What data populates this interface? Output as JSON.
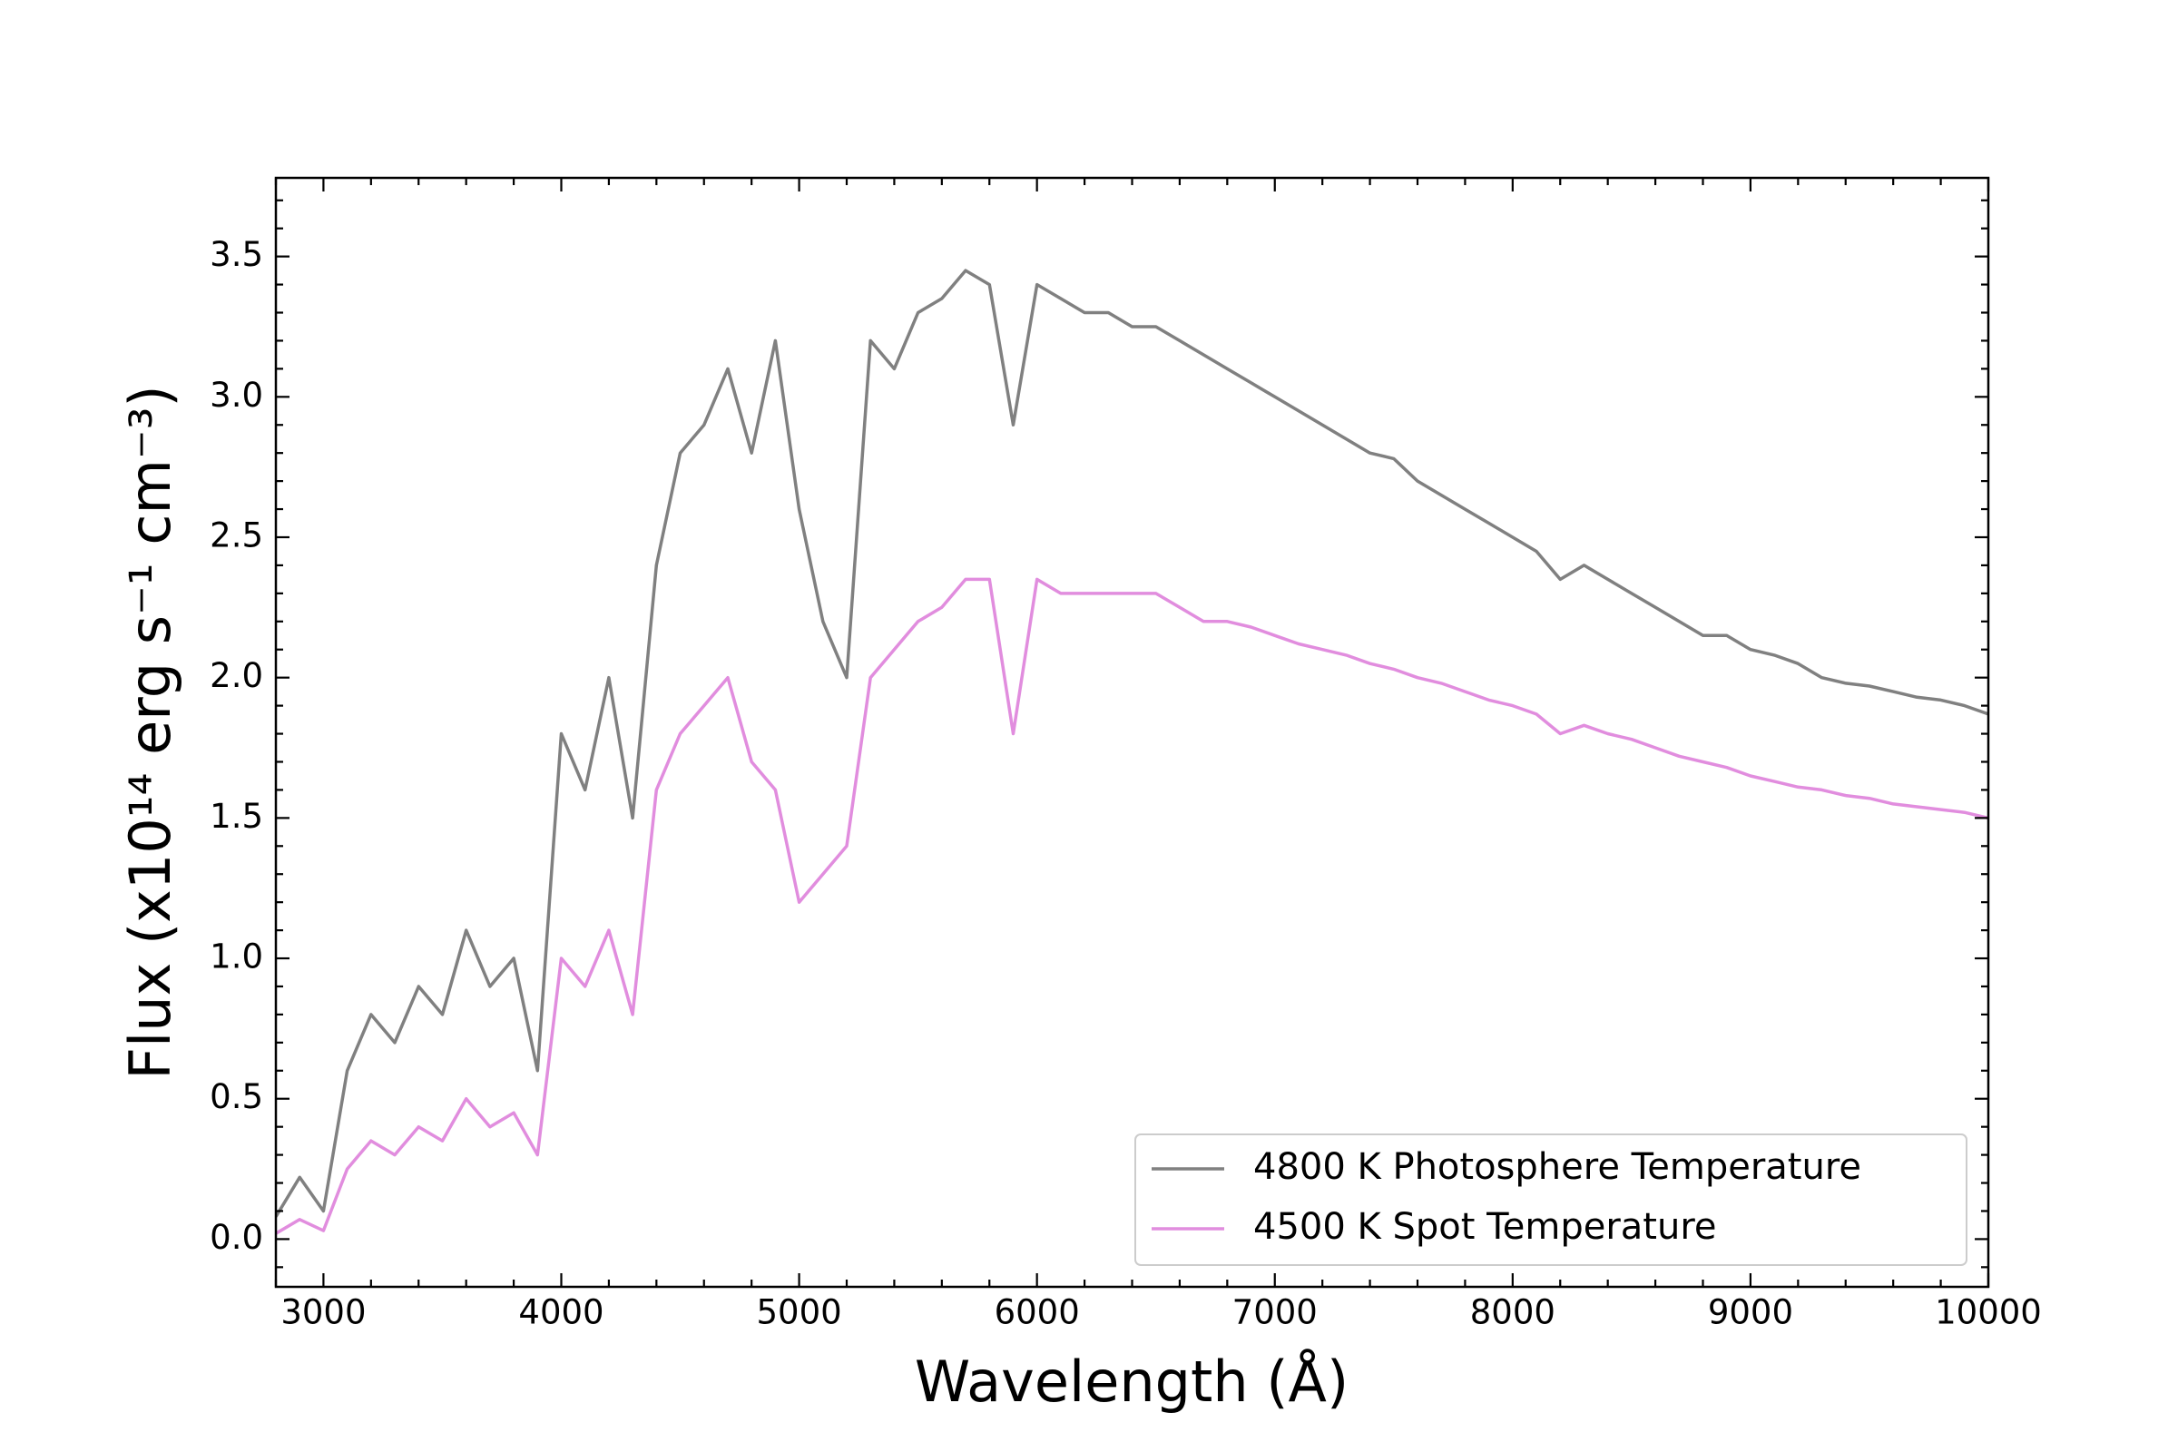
{
  "chart_data": {
    "type": "line",
    "xlabel": "Wavelength (Å)",
    "ylabel": "Flux (x10¹⁴ erg s⁻¹ cm⁻³)",
    "x": [
      2800,
      2900,
      3000,
      3100,
      3200,
      3300,
      3400,
      3500,
      3600,
      3700,
      3800,
      3900,
      4000,
      4100,
      4200,
      4300,
      4400,
      4500,
      4600,
      4700,
      4800,
      4900,
      5000,
      5100,
      5200,
      5300,
      5400,
      5500,
      5600,
      5700,
      5800,
      5900,
      6000,
      6100,
      6200,
      6300,
      6400,
      6500,
      6600,
      6700,
      6800,
      6900,
      7000,
      7100,
      7200,
      7300,
      7400,
      7500,
      7600,
      7700,
      7800,
      7900,
      8000,
      8100,
      8200,
      8300,
      8400,
      8500,
      8600,
      8700,
      8800,
      8900,
      9000,
      9100,
      9200,
      9300,
      9400,
      9500,
      9600,
      9700,
      9800,
      9900,
      10000
    ],
    "series": [
      {
        "name": "4800 K Photosphere Temperature",
        "color": "#808080",
        "opacity": 1,
        "values": [
          0.08,
          0.22,
          0.1,
          0.6,
          0.8,
          0.7,
          0.9,
          0.8,
          1.1,
          0.9,
          1.0,
          0.6,
          1.8,
          1.6,
          2.0,
          1.5,
          2.4,
          2.8,
          2.9,
          3.1,
          2.8,
          3.2,
          2.6,
          2.2,
          2.0,
          3.2,
          3.1,
          3.3,
          3.35,
          3.45,
          3.4,
          2.9,
          3.4,
          3.35,
          3.3,
          3.3,
          3.25,
          3.25,
          3.2,
          3.15,
          3.1,
          3.05,
          3.0,
          2.95,
          2.9,
          2.85,
          2.8,
          2.78,
          2.7,
          2.65,
          2.6,
          2.55,
          2.5,
          2.45,
          2.35,
          2.4,
          2.35,
          2.3,
          2.25,
          2.2,
          2.15,
          2.15,
          2.1,
          2.08,
          2.05,
          2.0,
          1.98,
          1.97,
          1.95,
          1.93,
          1.92,
          1.9,
          1.87
        ]
      },
      {
        "name": "4500 K Spot Temperature",
        "color": "#da70d6",
        "opacity": 0.8,
        "values": [
          0.02,
          0.07,
          0.03,
          0.25,
          0.35,
          0.3,
          0.4,
          0.35,
          0.5,
          0.4,
          0.45,
          0.3,
          1.0,
          0.9,
          1.1,
          0.8,
          1.6,
          1.8,
          1.9,
          2.0,
          1.7,
          1.6,
          1.2,
          1.3,
          1.4,
          2.0,
          2.1,
          2.2,
          2.25,
          2.35,
          2.35,
          1.8,
          2.35,
          2.3,
          2.3,
          2.3,
          2.3,
          2.3,
          2.25,
          2.2,
          2.2,
          2.18,
          2.15,
          2.12,
          2.1,
          2.08,
          2.05,
          2.03,
          2.0,
          1.98,
          1.95,
          1.92,
          1.9,
          1.87,
          1.8,
          1.83,
          1.8,
          1.78,
          1.75,
          1.72,
          1.7,
          1.68,
          1.65,
          1.63,
          1.61,
          1.6,
          1.58,
          1.57,
          1.55,
          1.54,
          1.53,
          1.52,
          1.5
        ]
      }
    ],
    "xlim": [
      2800,
      10000
    ],
    "ylim": [
      -0.17,
      3.78
    ],
    "xticks": [
      3000,
      4000,
      5000,
      6000,
      7000,
      8000,
      9000,
      10000
    ],
    "yticks": [
      {
        "value": 0,
        "label": "0.0"
      },
      0.5,
      {
        "value": 1,
        "label": "1.0"
      },
      1.5,
      {
        "value": 2,
        "label": "2.0"
      },
      2.5,
      {
        "value": 3,
        "label": "3.0"
      },
      3.5
    ],
    "xminorticks": [
      2800,
      3200,
      3400,
      3600,
      3800,
      4200,
      4400,
      4600,
      4800,
      5200,
      5400,
      5600,
      5800,
      6200,
      6400,
      6600,
      6800,
      7200,
      7400,
      7600,
      7800,
      8200,
      8400,
      8600,
      8800,
      9200,
      9400,
      9600,
      9800
    ],
    "yminorticks": [
      -0.1,
      0.1,
      0.2,
      0.3,
      0.4,
      0.6,
      0.7,
      0.8,
      0.9,
      1.1,
      1.2,
      1.3,
      1.4,
      1.6,
      1.7,
      1.8,
      1.9,
      2.1,
      2.2,
      2.3,
      2.4,
      2.6,
      2.7,
      2.8,
      2.9,
      3.1,
      3.2,
      3.3,
      3.4,
      3.6,
      3.7
    ],
    "legend": "lower right",
    "grid": false
  }
}
